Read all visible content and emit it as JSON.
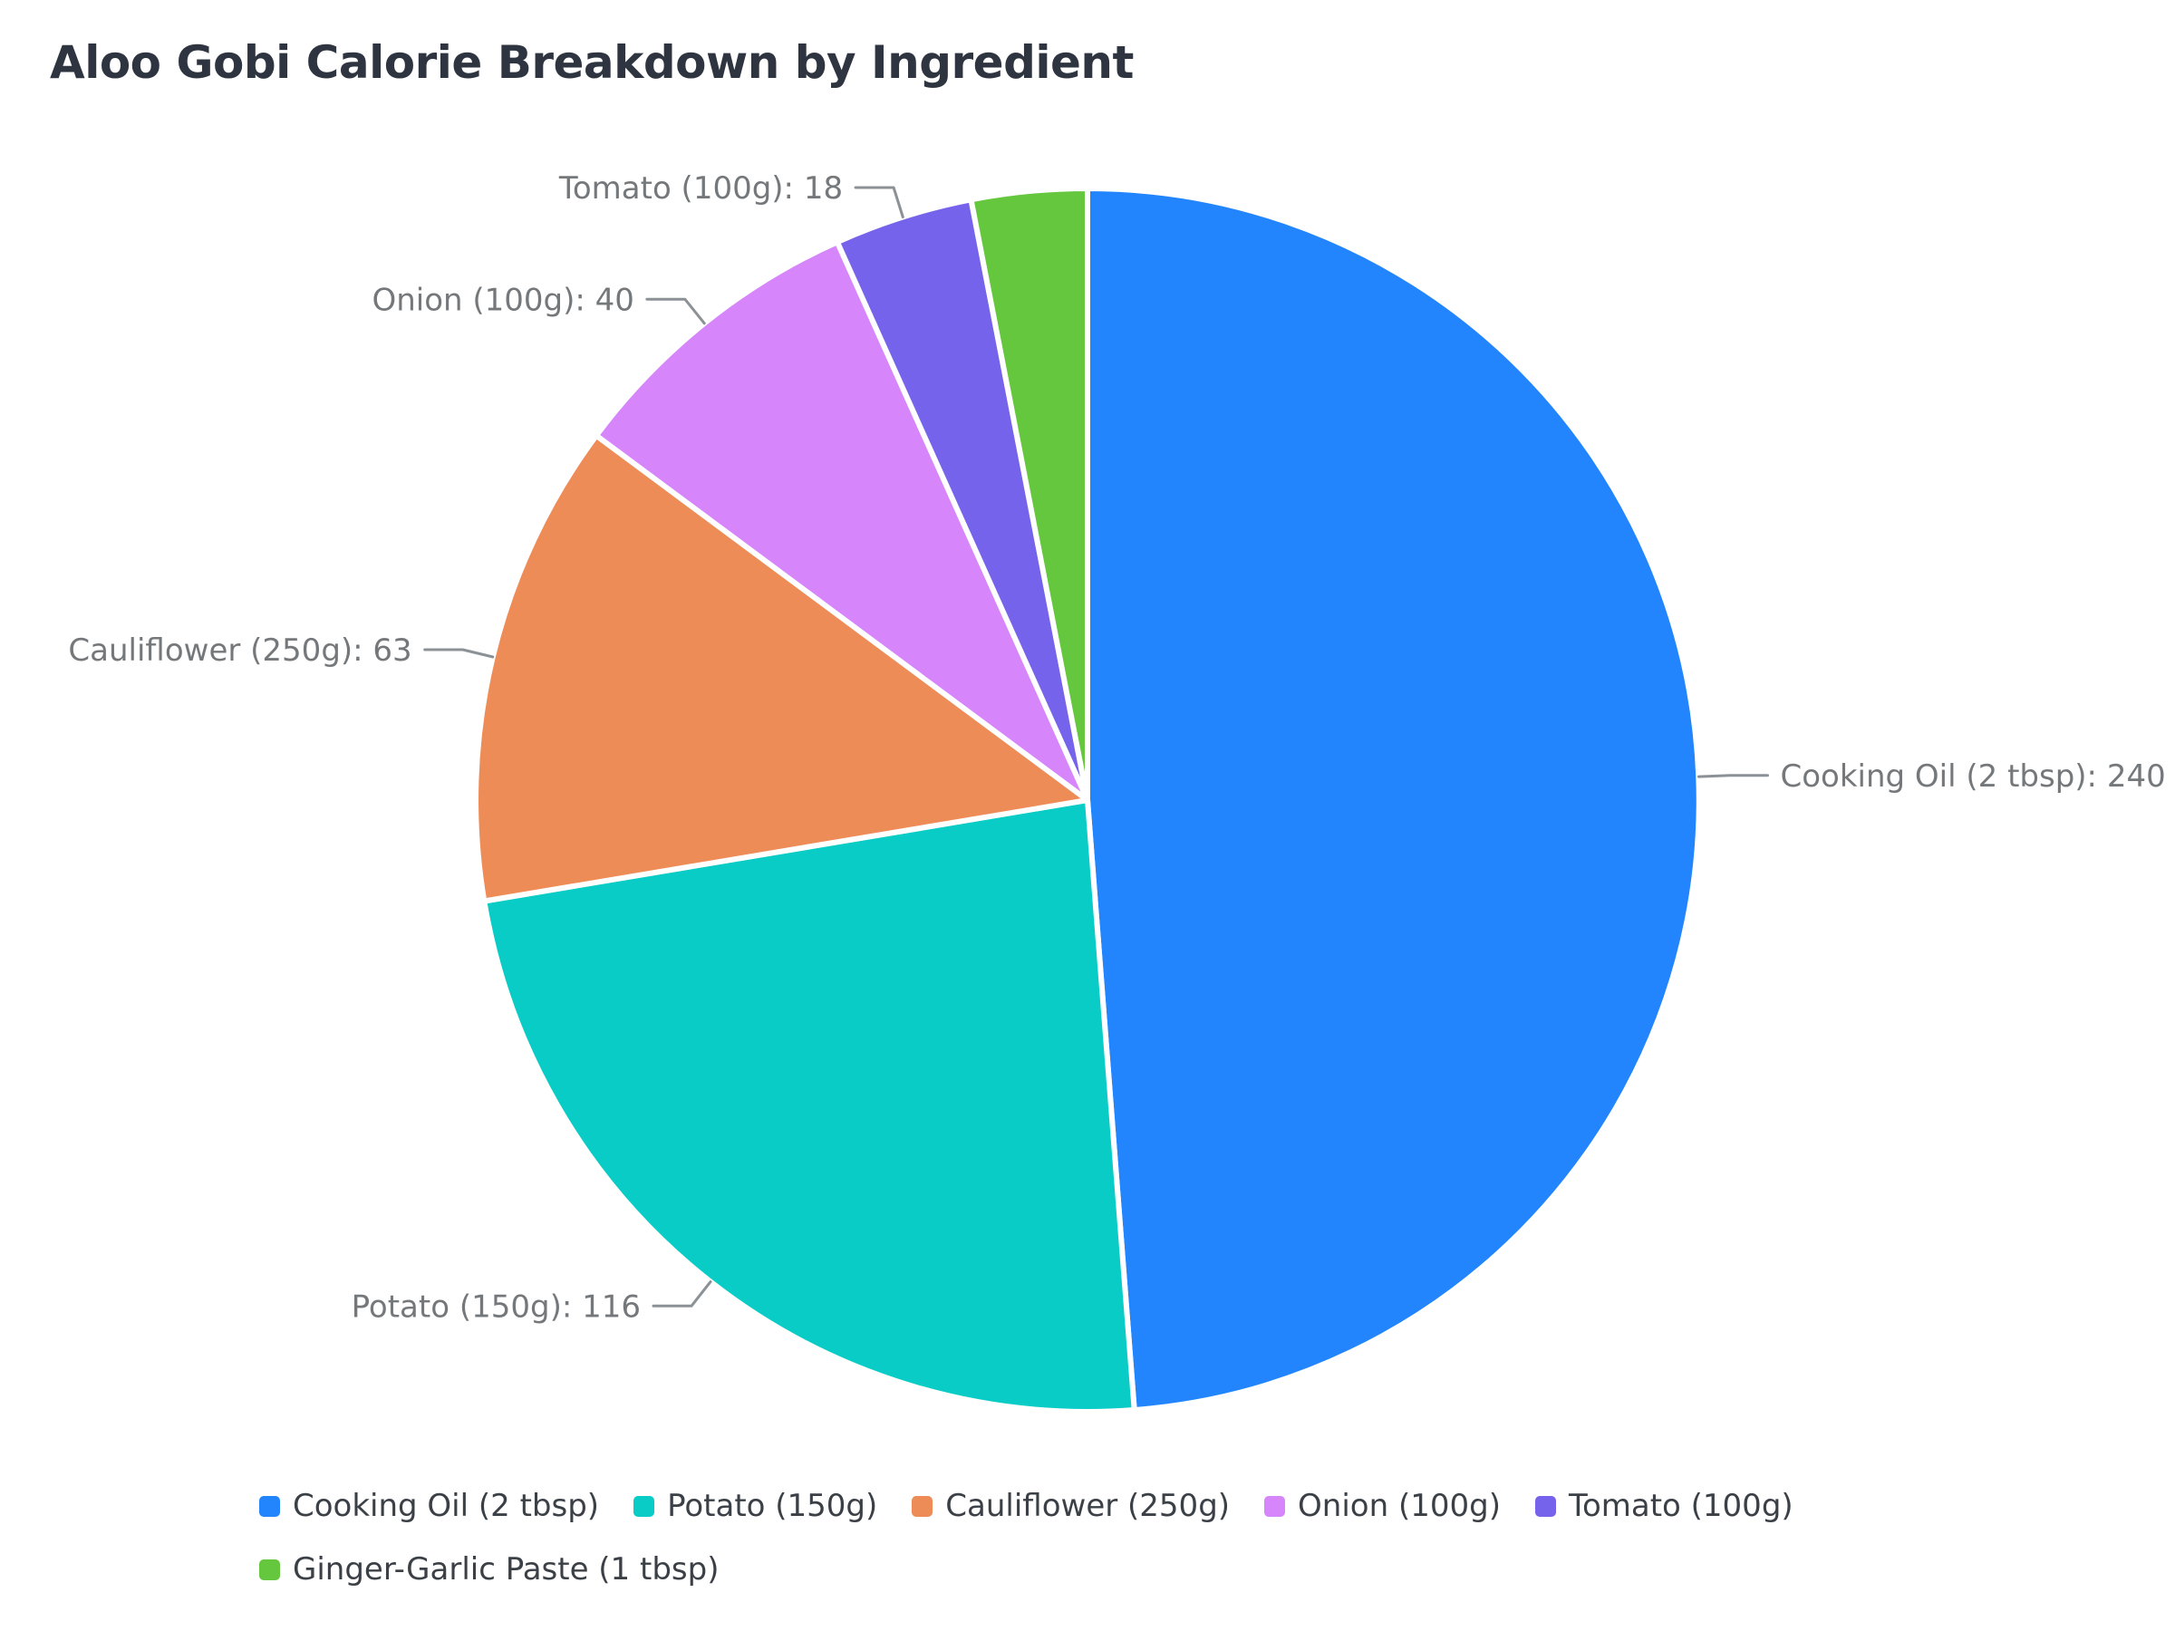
{
  "title": "Aloo Gobi Calorie Breakdown by Ingredient",
  "chart_data": {
    "type": "pie",
    "title": "Aloo Gobi Calorie Breakdown by Ingredient",
    "unit": "calories",
    "start_angle": "12 o'clock, clockwise",
    "total": 492,
    "legend_position": "bottom",
    "series": [
      {
        "label": "Cooking Oil (2 tbsp)",
        "value": 240,
        "color": "#2285fd",
        "callout": "Cooking Oil (2 tbsp): 240",
        "callout_visible": true
      },
      {
        "label": "Potato (150g)",
        "value": 116,
        "color": "#0accc6",
        "callout": "Potato (150g): 116",
        "callout_visible": true
      },
      {
        "label": "Cauliflower (250g)",
        "value": 63,
        "color": "#ee8c58",
        "callout": "Cauliflower (250g): 63",
        "callout_visible": true
      },
      {
        "label": "Onion (100g)",
        "value": 40,
        "color": "#d685fa",
        "callout": "Onion (100g): 40",
        "callout_visible": true
      },
      {
        "label": "Tomato (100g)",
        "value": 18,
        "color": "#7663ec",
        "callout": "Tomato (100g): 18",
        "callout_visible": true
      },
      {
        "label": "Ginger-Garlic Paste (1 tbsp)",
        "value": 15,
        "value_estimated_from_arc": true,
        "color": "#65c73d",
        "callout": "",
        "callout_visible": false
      }
    ],
    "legend": [
      "Cooking Oil (2 tbsp)",
      "Potato (150g)",
      "Cauliflower (250g)",
      "Onion (100g)",
      "Tomato (100g)",
      "Ginger-Garlic Paste (1 tbsp)"
    ]
  },
  "colors": {
    "background": "#ffffff",
    "title_text": "#2f3540",
    "callout_text": "#75787b",
    "callout_line": "#8c9196",
    "legend_text": "#3b4047",
    "slice_border": "#ffffff"
  }
}
